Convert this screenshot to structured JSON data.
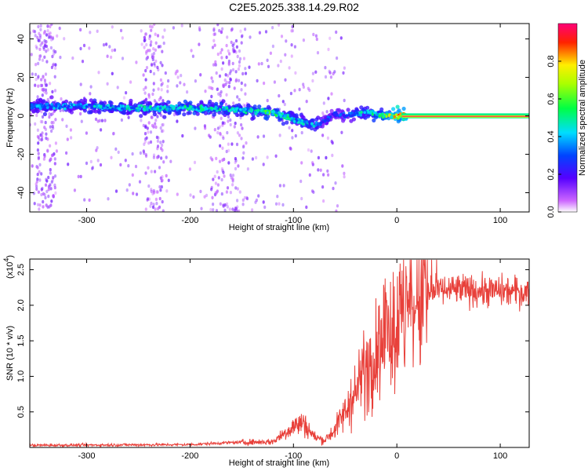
{
  "figure_title": "C2E5.2025.338.14.29.R02",
  "chart_data": [
    {
      "type": "heatmap",
      "title": "C2E5.2025.338.14.29.R02",
      "xlabel": "Height of straight line (km)",
      "ylabel": "Frequency (Hz)",
      "xlim": [
        -355,
        128
      ],
      "ylim": [
        -50,
        48
      ],
      "xticks": [
        -300,
        -200,
        -100,
        0,
        100
      ],
      "yticks": [
        -40,
        -20,
        0,
        20,
        40
      ],
      "colorbar": {
        "label": "Normalized spectral amplitude",
        "range": [
          0.0,
          1.0
        ],
        "ticks": [
          "0.0",
          "0.2",
          "0.4",
          "0.6",
          "0.8"
        ],
        "colormap": "rainbow (white-violet-blue-cyan-green-yellow-red-magenta)"
      },
      "ridge": {
        "x": [
          -355,
          -300,
          -250,
          -200,
          -150,
          -120,
          -100,
          -80,
          -70,
          -60,
          -50,
          -40,
          -30,
          -20,
          -10,
          0,
          50,
          128
        ],
        "freq": [
          5,
          5,
          4,
          4,
          3,
          2,
          -2,
          -5,
          -3,
          1,
          0,
          1,
          2,
          1,
          0,
          0,
          0,
          0
        ],
        "amplitude": [
          0.4,
          0.45,
          0.5,
          0.55,
          0.5,
          0.6,
          0.5,
          0.45,
          0.35,
          0.3,
          0.35,
          0.45,
          0.5,
          0.6,
          0.7,
          0.9,
          1.0,
          1.0
        ]
      },
      "diffuse_bands_x": [
        [
          -350,
          -330
        ],
        [
          -245,
          -225
        ],
        [
          -180,
          -145
        ]
      ],
      "grid": false
    },
    {
      "type": "line",
      "xlabel": "Height of straight line (km)",
      "ylabel": "SNR (10 * v/v)",
      "y_multiplier_label": "(x10",
      "y_multiplier_exp": "4",
      "xlim": [
        -355,
        128
      ],
      "ylim": [
        0,
        2.65
      ],
      "xticks": [
        -300,
        -200,
        -100,
        0,
        100
      ],
      "yticks": [
        "0.5",
        "1.0",
        "1.5",
        "2.0",
        "2.5"
      ],
      "color": "#e8403a",
      "grid": false,
      "envelope": {
        "x": [
          -355,
          -200,
          -160,
          -120,
          -100,
          -90,
          -80,
          -70,
          -60,
          -50,
          -40,
          -30,
          -20,
          -10,
          0,
          10,
          20,
          30,
          40,
          60,
          80,
          100,
          128
        ],
        "y": [
          0.03,
          0.04,
          0.07,
          0.08,
          0.3,
          0.35,
          0.15,
          0.1,
          0.25,
          0.5,
          0.75,
          1.1,
          1.3,
          1.5,
          1.7,
          1.9,
          2.0,
          2.15,
          2.2,
          2.22,
          2.2,
          2.2,
          2.18
        ]
      }
    }
  ]
}
